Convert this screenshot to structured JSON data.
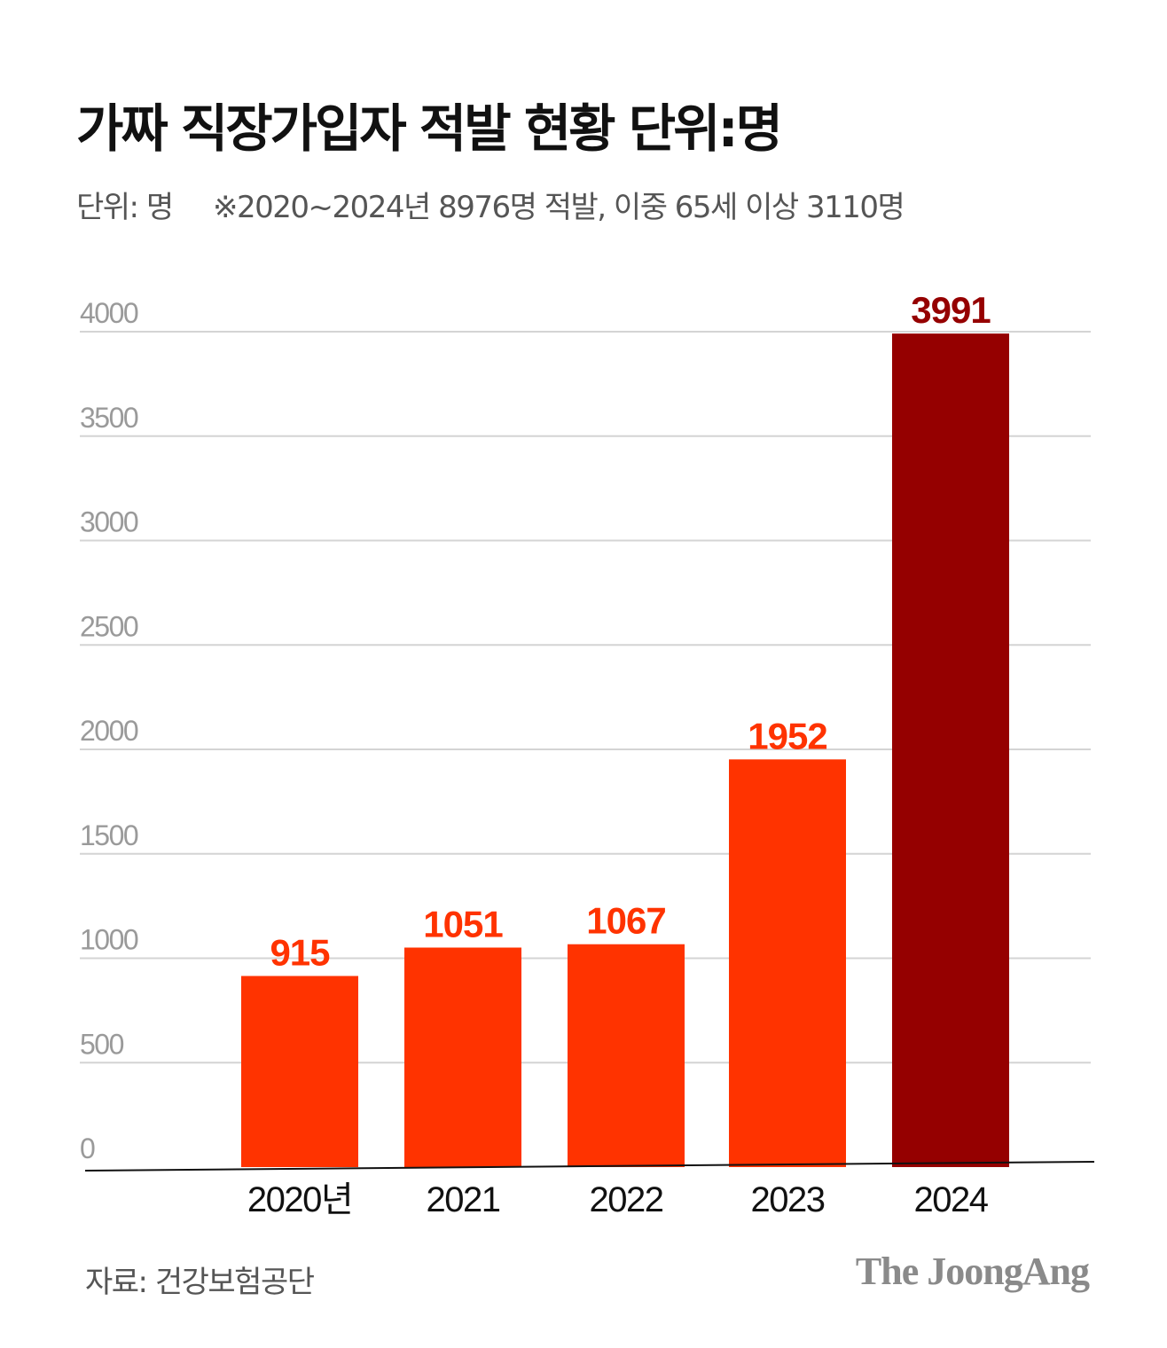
{
  "header": {
    "title": "가짜 직장가입자 적발 현황 단위:명",
    "unit_label": "단위: 명",
    "note": "※2020~2024년 8976명 적발, 이중 65세 이상 3110명"
  },
  "footer": {
    "source": "자료: 건강보험공단",
    "brand": "The JoongAng"
  },
  "colors": {
    "bar_regular": "#ff3300",
    "bar_highlight": "#950000",
    "label_regular": "#ff3300",
    "label_highlight": "#950000",
    "grid": "#d4d4d4",
    "axis": "#111111"
  },
  "chart_data": {
    "type": "bar",
    "title": "가짜 직장가입자 적발 현황 단위:명",
    "categories": [
      "2020년",
      "2021",
      "2022",
      "2023",
      "2024"
    ],
    "values": [
      915,
      1051,
      1067,
      1952,
      3991
    ],
    "highlight_index": 4,
    "ylim": [
      0,
      4000
    ],
    "yticks": [
      "0",
      "500",
      "1000",
      "1500",
      "2000",
      "2500",
      "3000",
      "3500",
      "4000"
    ],
    "data_labels": [
      "915",
      "1051",
      "1067",
      "1952",
      "3991"
    ],
    "grid": true,
    "legend": "none"
  }
}
